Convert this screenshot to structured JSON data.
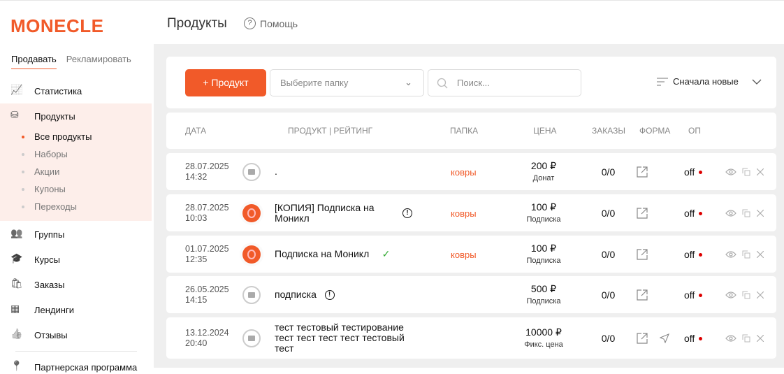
{
  "brand": "MONECLE",
  "header": {
    "title": "Продукты",
    "help": "Помощь"
  },
  "sidebar": {
    "tabs": [
      "Продавать",
      "Рекламировать"
    ],
    "items": [
      {
        "label": "Статистика",
        "icon": "chart-line-icon"
      },
      {
        "label": "Продукты",
        "icon": "boxes-icon"
      },
      {
        "label": "Группы",
        "icon": "users-icon"
      },
      {
        "label": "Курсы",
        "icon": "graduation-cap-icon"
      },
      {
        "label": "Заказы",
        "icon": "shopping-bag-icon"
      },
      {
        "label": "Лендинги",
        "icon": "layout-icon"
      },
      {
        "label": "Отзывы",
        "icon": "thumbs-up-icon"
      },
      {
        "label": "Партнерская программа",
        "icon": "pin-icon"
      }
    ],
    "subitems": [
      "Все продукты",
      "Наборы",
      "Акции",
      "Купоны",
      "Переходы"
    ]
  },
  "toolbar": {
    "add": "+ Продукт",
    "folder_placeholder": "Выберите папку",
    "search_placeholder": "Поиск...",
    "sort": "Сначала новые"
  },
  "table": {
    "headers": [
      "Дата",
      "Продукт | Рейтинг",
      "Папка",
      "Цена",
      "Заказы",
      "Форма",
      "ОП"
    ],
    "rows": [
      {
        "date": "28.07.2025",
        "time": "14:32",
        "image": "no-image",
        "name": ".",
        "warn": false,
        "check": false,
        "folder": "ковры",
        "price": "200 ₽",
        "type": "Донат",
        "orders": "0/0",
        "send": false,
        "op": "off"
      },
      {
        "date": "28.07.2025",
        "time": "10:03",
        "image": "logo",
        "name": "[КОПИЯ] Подписка на Моникл",
        "warn": true,
        "check": false,
        "folder": "ковры",
        "price": "100 ₽",
        "type": "Подписка",
        "orders": "0/0",
        "send": false,
        "op": "off"
      },
      {
        "date": "01.07.2025",
        "time": "12:35",
        "image": "logo",
        "name": "Подписка на Моникл",
        "warn": false,
        "check": true,
        "folder": "ковры",
        "price": "100 ₽",
        "type": "Подписка",
        "orders": "0/0",
        "send": false,
        "op": "off"
      },
      {
        "date": "26.05.2025",
        "time": "14:15",
        "image": "no-image",
        "name": "подписка",
        "warn": true,
        "check": false,
        "folder": "",
        "price": "500 ₽",
        "type": "Подписка",
        "orders": "0/0",
        "send": false,
        "op": "off"
      },
      {
        "date": "13.12.2024",
        "time": "20:40",
        "image": "no-image",
        "name": "тест тестовый тестирование тест тест тест тест тестовый тест",
        "warn": false,
        "check": false,
        "folder": "",
        "price": "10000 ₽",
        "type": "Фикс. цена",
        "orders": "0/0",
        "send": true,
        "op": "off"
      }
    ]
  },
  "colors": {
    "accent": "#f15a29",
    "active_bg": "#fdeeea",
    "status_off": "#dd0000"
  }
}
